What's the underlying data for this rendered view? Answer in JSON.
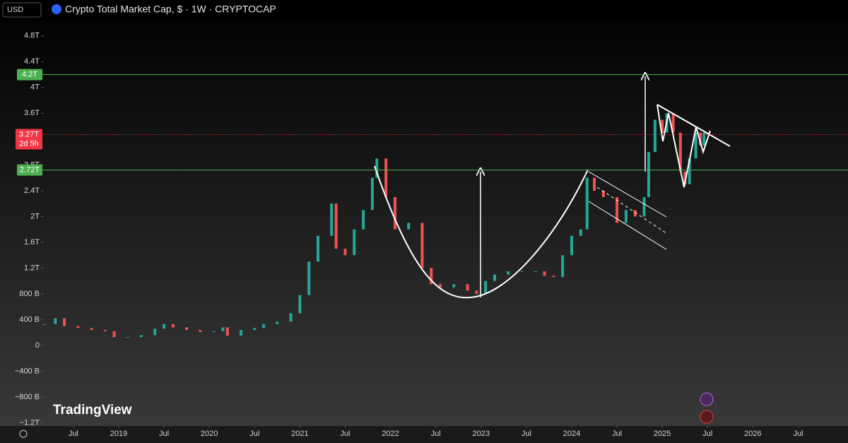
{
  "header": {
    "currency": "USD",
    "title": "Crypto Total Market Cap, $ · 1W · CRYPTOCAP",
    "brand": "TradingView"
  },
  "chart_data": {
    "type": "candlestick",
    "x": [
      2018.18,
      2018.3,
      2018.4,
      2018.55,
      2018.7,
      2018.85,
      2018.95,
      2019.1,
      2019.25,
      2019.4,
      2019.5,
      2019.6,
      2019.75,
      2019.9,
      2020.05,
      2020.15,
      2020.2,
      2020.35,
      2020.5,
      2020.6,
      2020.75,
      2020.9,
      2021.0,
      2021.1,
      2021.2,
      2021.35,
      2021.4,
      2021.5,
      2021.6,
      2021.7,
      2021.8,
      2021.85,
      2021.95,
      2022.05,
      2022.2,
      2022.35,
      2022.45,
      2022.55,
      2022.7,
      2022.85,
      2022.95,
      2023.05,
      2023.15,
      2023.3,
      2023.45,
      2023.6,
      2023.7,
      2023.8,
      2023.9,
      2024.0,
      2024.1,
      2024.17,
      2024.25,
      2024.35,
      2024.5,
      2024.6,
      2024.7,
      2024.8,
      2024.85,
      2024.92,
      2025.0,
      2025.05,
      2025.12,
      2025.2,
      2025.25,
      2025.3,
      2025.37,
      2025.42,
      2025.46,
      2025.5
    ],
    "values": [
      0.33,
      0.42,
      0.3,
      0.27,
      0.24,
      0.22,
      0.13,
      0.13,
      0.16,
      0.26,
      0.33,
      0.28,
      0.24,
      0.21,
      0.22,
      0.28,
      0.15,
      0.24,
      0.27,
      0.33,
      0.37,
      0.5,
      0.78,
      1.3,
      1.7,
      2.2,
      1.5,
      1.4,
      1.8,
      2.1,
      2.6,
      2.9,
      2.3,
      1.8,
      1.9,
      1.2,
      0.95,
      0.9,
      0.95,
      0.85,
      0.8,
      1.0,
      1.1,
      1.15,
      1.15,
      1.15,
      1.08,
      1.06,
      1.4,
      1.7,
      1.8,
      2.6,
      2.4,
      2.3,
      1.9,
      2.1,
      2.0,
      2.3,
      3.0,
      3.5,
      3.3,
      3.6,
      3.3,
      2.7,
      2.5,
      2.9,
      3.3,
      3.1,
      3.3,
      3.27
    ],
    "color": "#26a69a",
    "down_color": "#ef5350",
    "xlim": [
      2017.69,
      2027.05
    ],
    "xticks": [
      {
        "value": 2018.5,
        "label": "Jul"
      },
      {
        "value": 2019,
        "label": "2019"
      },
      {
        "value": 2019.5,
        "label": "Jul"
      },
      {
        "value": 2020,
        "label": "2020"
      },
      {
        "value": 2020.5,
        "label": "Jul"
      },
      {
        "value": 2021,
        "label": "2021"
      },
      {
        "value": 2021.5,
        "label": "Jul"
      },
      {
        "value": 2022,
        "label": "2022"
      },
      {
        "value": 2022.5,
        "label": "Jul"
      },
      {
        "value": 2023,
        "label": "2023"
      },
      {
        "value": 2023.5,
        "label": "Jul"
      },
      {
        "value": 2024,
        "label": "2024"
      },
      {
        "value": 2024.5,
        "label": "Jul"
      },
      {
        "value": 2025,
        "label": "2025"
      },
      {
        "value": 2025.5,
        "label": "Jul"
      },
      {
        "value": 2026,
        "label": "2026"
      },
      {
        "value": 2026.5,
        "label": "Jul"
      }
    ],
    "ylim": [
      -1.25,
      5.05
    ],
    "yticks": [
      {
        "value": -1.2,
        "label": "−1.2T"
      },
      {
        "value": -0.8,
        "label": "−800 B"
      },
      {
        "value": -0.4,
        "label": "−400 B"
      },
      0,
      {
        "value": 0.4,
        "label": "400 B"
      },
      {
        "value": 0.8,
        "label": "800 B"
      },
      {
        "value": 1.2,
        "label": "1.2T"
      },
      {
        "value": 1.6,
        "label": "1.6T"
      },
      {
        "value": 2,
        "label": "2T"
      },
      {
        "value": 2.4,
        "label": "2.4T"
      },
      {
        "value": 2.8,
        "label": "2.8T"
      },
      {
        "value": 3.6,
        "label": "3.6T"
      },
      {
        "value": 4,
        "label": "4T"
      },
      {
        "value": 4.4,
        "label": "4.4T"
      },
      {
        "value": 4.8,
        "label": "4.8T"
      }
    ],
    "levels": [
      {
        "value": 4.2,
        "label": "4.2T",
        "color": "#4caf50"
      },
      {
        "value": 2.72,
        "label": "2.72T",
        "color": "#4caf50"
      }
    ],
    "last_price": {
      "value": 3.27,
      "label": "3.27T",
      "countdown": "2d 5h",
      "color": "#f23645"
    },
    "grid": false
  }
}
